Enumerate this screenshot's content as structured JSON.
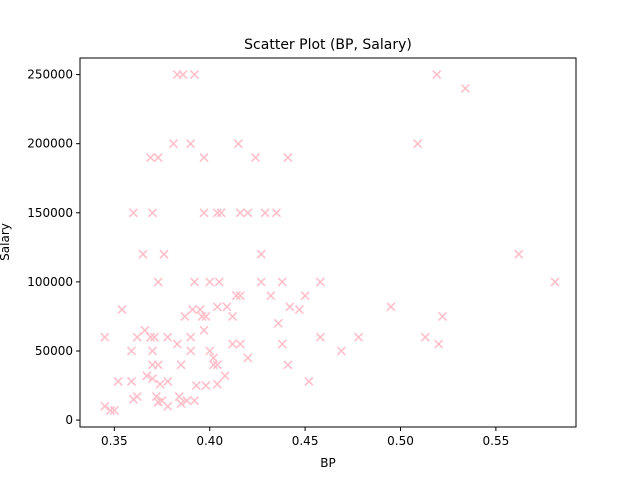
{
  "chart_data": {
    "type": "scatter",
    "title": "Scatter Plot (BP, Salary)",
    "xlabel": "BP",
    "ylabel": "Salary",
    "xlim": [
      0.332,
      0.592
    ],
    "ylim": [
      -5000,
      262000
    ],
    "xticks": [
      0.35,
      0.4,
      0.45,
      0.5,
      0.55
    ],
    "xtick_labels": [
      "0.35",
      "0.40",
      "0.45",
      "0.50",
      "0.55"
    ],
    "yticks": [
      0,
      50000,
      100000,
      150000,
      200000,
      250000
    ],
    "ytick_labels": [
      "0",
      "50000",
      "100000",
      "150000",
      "200000",
      "250000"
    ],
    "marker": "x",
    "color": "#ffc0cb",
    "grid": false,
    "points": [
      {
        "x": 0.383,
        "y": 250000
      },
      {
        "x": 0.386,
        "y": 250000
      },
      {
        "x": 0.392,
        "y": 250000
      },
      {
        "x": 0.519,
        "y": 250000
      },
      {
        "x": 0.534,
        "y": 240000
      },
      {
        "x": 0.369,
        "y": 190000
      },
      {
        "x": 0.373,
        "y": 190000
      },
      {
        "x": 0.381,
        "y": 200000
      },
      {
        "x": 0.39,
        "y": 200000
      },
      {
        "x": 0.397,
        "y": 190000
      },
      {
        "x": 0.415,
        "y": 200000
      },
      {
        "x": 0.424,
        "y": 190000
      },
      {
        "x": 0.441,
        "y": 190000
      },
      {
        "x": 0.509,
        "y": 200000
      },
      {
        "x": 0.36,
        "y": 150000
      },
      {
        "x": 0.37,
        "y": 150000
      },
      {
        "x": 0.397,
        "y": 150000
      },
      {
        "x": 0.404,
        "y": 150000
      },
      {
        "x": 0.406,
        "y": 150000
      },
      {
        "x": 0.416,
        "y": 150000
      },
      {
        "x": 0.42,
        "y": 150000
      },
      {
        "x": 0.429,
        "y": 150000
      },
      {
        "x": 0.435,
        "y": 150000
      },
      {
        "x": 0.365,
        "y": 120000
      },
      {
        "x": 0.376,
        "y": 120000
      },
      {
        "x": 0.427,
        "y": 120000
      },
      {
        "x": 0.562,
        "y": 120000
      },
      {
        "x": 0.373,
        "y": 100000
      },
      {
        "x": 0.392,
        "y": 100000
      },
      {
        "x": 0.4,
        "y": 100000
      },
      {
        "x": 0.405,
        "y": 100000
      },
      {
        "x": 0.427,
        "y": 100000
      },
      {
        "x": 0.438,
        "y": 100000
      },
      {
        "x": 0.458,
        "y": 100000
      },
      {
        "x": 0.581,
        "y": 100000
      },
      {
        "x": 0.354,
        "y": 80000
      },
      {
        "x": 0.391,
        "y": 80000
      },
      {
        "x": 0.395,
        "y": 80000
      },
      {
        "x": 0.387,
        "y": 75000
      },
      {
        "x": 0.396,
        "y": 75000
      },
      {
        "x": 0.398,
        "y": 75000
      },
      {
        "x": 0.404,
        "y": 82000
      },
      {
        "x": 0.409,
        "y": 82000
      },
      {
        "x": 0.412,
        "y": 75000
      },
      {
        "x": 0.414,
        "y": 90000
      },
      {
        "x": 0.416,
        "y": 90000
      },
      {
        "x": 0.432,
        "y": 90000
      },
      {
        "x": 0.442,
        "y": 82000
      },
      {
        "x": 0.447,
        "y": 80000
      },
      {
        "x": 0.45,
        "y": 90000
      },
      {
        "x": 0.436,
        "y": 70000
      },
      {
        "x": 0.495,
        "y": 82000
      },
      {
        "x": 0.522,
        "y": 75000
      },
      {
        "x": 0.345,
        "y": 60000
      },
      {
        "x": 0.362,
        "y": 60000
      },
      {
        "x": 0.366,
        "y": 65000
      },
      {
        "x": 0.369,
        "y": 60000
      },
      {
        "x": 0.371,
        "y": 60000
      },
      {
        "x": 0.378,
        "y": 60000
      },
      {
        "x": 0.39,
        "y": 60000
      },
      {
        "x": 0.397,
        "y": 65000
      },
      {
        "x": 0.359,
        "y": 50000
      },
      {
        "x": 0.37,
        "y": 50000
      },
      {
        "x": 0.383,
        "y": 55000
      },
      {
        "x": 0.39,
        "y": 50000
      },
      {
        "x": 0.4,
        "y": 50000
      },
      {
        "x": 0.402,
        "y": 45000
      },
      {
        "x": 0.412,
        "y": 55000
      },
      {
        "x": 0.416,
        "y": 55000
      },
      {
        "x": 0.42,
        "y": 45000
      },
      {
        "x": 0.438,
        "y": 55000
      },
      {
        "x": 0.458,
        "y": 60000
      },
      {
        "x": 0.469,
        "y": 50000
      },
      {
        "x": 0.478,
        "y": 60000
      },
      {
        "x": 0.513,
        "y": 60000
      },
      {
        "x": 0.52,
        "y": 55000
      },
      {
        "x": 0.37,
        "y": 40000
      },
      {
        "x": 0.373,
        "y": 40000
      },
      {
        "x": 0.385,
        "y": 40000
      },
      {
        "x": 0.402,
        "y": 40000
      },
      {
        "x": 0.404,
        "y": 40000
      },
      {
        "x": 0.441,
        "y": 40000
      },
      {
        "x": 0.367,
        "y": 32000
      },
      {
        "x": 0.37,
        "y": 30000
      },
      {
        "x": 0.374,
        "y": 26000
      },
      {
        "x": 0.378,
        "y": 28000
      },
      {
        "x": 0.393,
        "y": 25000
      },
      {
        "x": 0.398,
        "y": 25000
      },
      {
        "x": 0.404,
        "y": 26000
      },
      {
        "x": 0.408,
        "y": 32000
      },
      {
        "x": 0.352,
        "y": 28000
      },
      {
        "x": 0.359,
        "y": 28000
      },
      {
        "x": 0.452,
        "y": 28000
      },
      {
        "x": 0.36,
        "y": 15000
      },
      {
        "x": 0.362,
        "y": 17000
      },
      {
        "x": 0.372,
        "y": 17000
      },
      {
        "x": 0.373,
        "y": 13000
      },
      {
        "x": 0.375,
        "y": 14000
      },
      {
        "x": 0.378,
        "y": 10000
      },
      {
        "x": 0.384,
        "y": 17000
      },
      {
        "x": 0.385,
        "y": 12000
      },
      {
        "x": 0.388,
        "y": 14000
      },
      {
        "x": 0.392,
        "y": 14000
      },
      {
        "x": 0.345,
        "y": 10000
      },
      {
        "x": 0.348,
        "y": 7000
      },
      {
        "x": 0.35,
        "y": 7000
      }
    ]
  }
}
